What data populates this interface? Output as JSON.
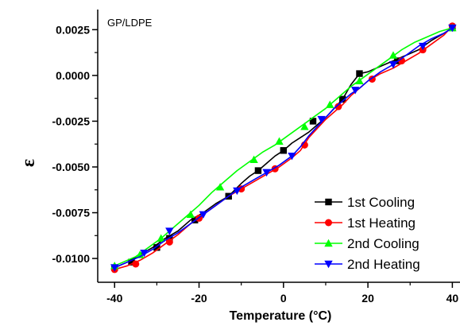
{
  "chart_data": {
    "type": "line",
    "title": "",
    "annotation": "GP/LDPE",
    "xlabel": "Temperature (°C)",
    "ylabel": "ε",
    "xlim": [
      -44,
      42
    ],
    "ylim": [
      -0.0113,
      0.0036
    ],
    "xticks": [
      -40,
      -20,
      0,
      20,
      40
    ],
    "xtick_labels": [
      "-40",
      "-20",
      "0",
      "20",
      "40"
    ],
    "yticks": [
      -0.01,
      -0.0075,
      -0.005,
      -0.0025,
      0.0,
      0.0025
    ],
    "ytick_labels": [
      "-0.0100",
      "-0.0075",
      "-0.0050",
      "-0.0025",
      "0.0000",
      "0.0025"
    ],
    "grid": false,
    "legend_position": "bottom-right",
    "series": [
      {
        "name": "1st Cooling",
        "color": "#000000",
        "marker": "square",
        "x": [
          40,
          38,
          35,
          32,
          29,
          26,
          23,
          20,
          18,
          16,
          14,
          12,
          10,
          8,
          6,
          4,
          2,
          0,
          -2,
          -4,
          -6,
          -8,
          -10,
          -13,
          -16,
          -19,
          -22,
          -25,
          -28,
          -31,
          -34,
          -37,
          -40
        ],
        "y": [
          0.0026,
          0.0023,
          0.0019,
          0.0014,
          0.0011,
          0.0008,
          0.0005,
          0.0002,
          0.0001,
          -0.0005,
          -0.0013,
          -0.0018,
          -0.0023,
          -0.0027,
          -0.0031,
          -0.0034,
          -0.0037,
          -0.0041,
          -0.0044,
          -0.0048,
          -0.0052,
          -0.0055,
          -0.0059,
          -0.0066,
          -0.007,
          -0.0075,
          -0.0079,
          -0.0085,
          -0.0089,
          -0.0094,
          -0.0098,
          -0.0102,
          -0.0105
        ],
        "markers_x": [
          40,
          27,
          18,
          14,
          7,
          0,
          -6,
          -13,
          -21,
          -27,
          -30,
          -36,
          -40
        ],
        "markers_y": [
          0.0026,
          0.0008,
          0.0001,
          -0.0013,
          -0.0025,
          -0.0041,
          -0.0052,
          -0.0066,
          -0.0079,
          -0.0089,
          -0.0094,
          -0.0102,
          -0.0105
        ]
      },
      {
        "name": "1st Heating",
        "color": "#ff0000",
        "marker": "circle",
        "x": [
          -40,
          -37,
          -34,
          -31,
          -28,
          -25,
          -22,
          -19,
          -16,
          -13,
          -10,
          -7,
          -4,
          -1,
          2,
          4,
          6,
          8,
          10,
          12,
          14,
          16,
          18,
          20,
          23,
          26,
          29,
          32,
          35,
          38,
          40
        ],
        "y": [
          -0.0106,
          -0.0104,
          -0.0101,
          -0.0097,
          -0.0092,
          -0.0087,
          -0.0081,
          -0.0076,
          -0.0071,
          -0.0066,
          -0.0062,
          -0.0058,
          -0.0054,
          -0.005,
          -0.0045,
          -0.0041,
          -0.0034,
          -0.0029,
          -0.0024,
          -0.002,
          -0.0016,
          -0.0011,
          -0.0007,
          -0.0003,
          0.0001,
          0.0004,
          0.0008,
          0.0012,
          0.0017,
          0.0022,
          0.0027
        ],
        "markers_x": [
          -40,
          -35,
          -27,
          -20,
          -10,
          -2,
          5,
          13,
          21,
          28,
          33,
          40
        ],
        "markers_y": [
          -0.0106,
          -0.0103,
          -0.0091,
          -0.0078,
          -0.0062,
          -0.0051,
          -0.0038,
          -0.0017,
          -0.0002,
          0.0008,
          0.0014,
          0.0027
        ]
      },
      {
        "name": "2nd Cooling",
        "color": "#00ff00",
        "marker": "triangle-up",
        "x": [
          40,
          37,
          34,
          31,
          28,
          25,
          22,
          19,
          16,
          13,
          10,
          7,
          4,
          1,
          -2,
          -5,
          -8,
          -11,
          -14,
          -17,
          -20,
          -23,
          -26,
          -29,
          -32,
          -35,
          -38,
          -40
        ],
        "y": [
          0.0026,
          0.0024,
          0.0021,
          0.0018,
          0.0014,
          0.0009,
          0.0004,
          -0.0001,
          -0.0006,
          -0.0012,
          -0.0018,
          -0.0023,
          -0.0028,
          -0.0033,
          -0.0038,
          -0.0042,
          -0.0047,
          -0.0052,
          -0.0058,
          -0.0064,
          -0.0071,
          -0.0077,
          -0.0083,
          -0.0089,
          -0.0094,
          -0.0099,
          -0.0102,
          -0.0104
        ],
        "markers_x": [
          40,
          26,
          18,
          11,
          5,
          -1,
          -7,
          -15,
          -22,
          -29,
          -34,
          -40
        ],
        "markers_y": [
          0.0026,
          0.0011,
          -0.0003,
          -0.0016,
          -0.0028,
          -0.0036,
          -0.0046,
          -0.0061,
          -0.0076,
          -0.0089,
          -0.0098,
          -0.0104
        ]
      },
      {
        "name": "2nd Heating",
        "color": "#0000ff",
        "marker": "triangle-down",
        "x": [
          -40,
          -37,
          -34,
          -31,
          -28,
          -25,
          -22,
          -19,
          -16,
          -13,
          -10,
          -7,
          -4,
          -1,
          2,
          4,
          6,
          8,
          10,
          12,
          14,
          16,
          18,
          20,
          23,
          26,
          29,
          32,
          35,
          38,
          40
        ],
        "y": [
          -0.0105,
          -0.0102,
          -0.0099,
          -0.0095,
          -0.009,
          -0.0086,
          -0.0081,
          -0.0076,
          -0.0071,
          -0.0066,
          -0.0061,
          -0.0057,
          -0.0053,
          -0.0049,
          -0.0044,
          -0.0039,
          -0.0033,
          -0.0028,
          -0.0023,
          -0.0018,
          -0.0014,
          -0.001,
          -0.0007,
          -0.0003,
          0.0002,
          0.0006,
          0.0011,
          0.0016,
          0.002,
          0.0023,
          0.0026
        ],
        "markers_x": [
          -40,
          -33,
          -27,
          -19,
          -11,
          -4,
          2,
          9,
          17,
          26,
          33,
          40
        ],
        "markers_y": [
          -0.0105,
          -0.0097,
          -0.0085,
          -0.0076,
          -0.0063,
          -0.0053,
          -0.0044,
          -0.0024,
          -0.0008,
          0.0006,
          0.0016,
          0.0026
        ]
      }
    ]
  }
}
